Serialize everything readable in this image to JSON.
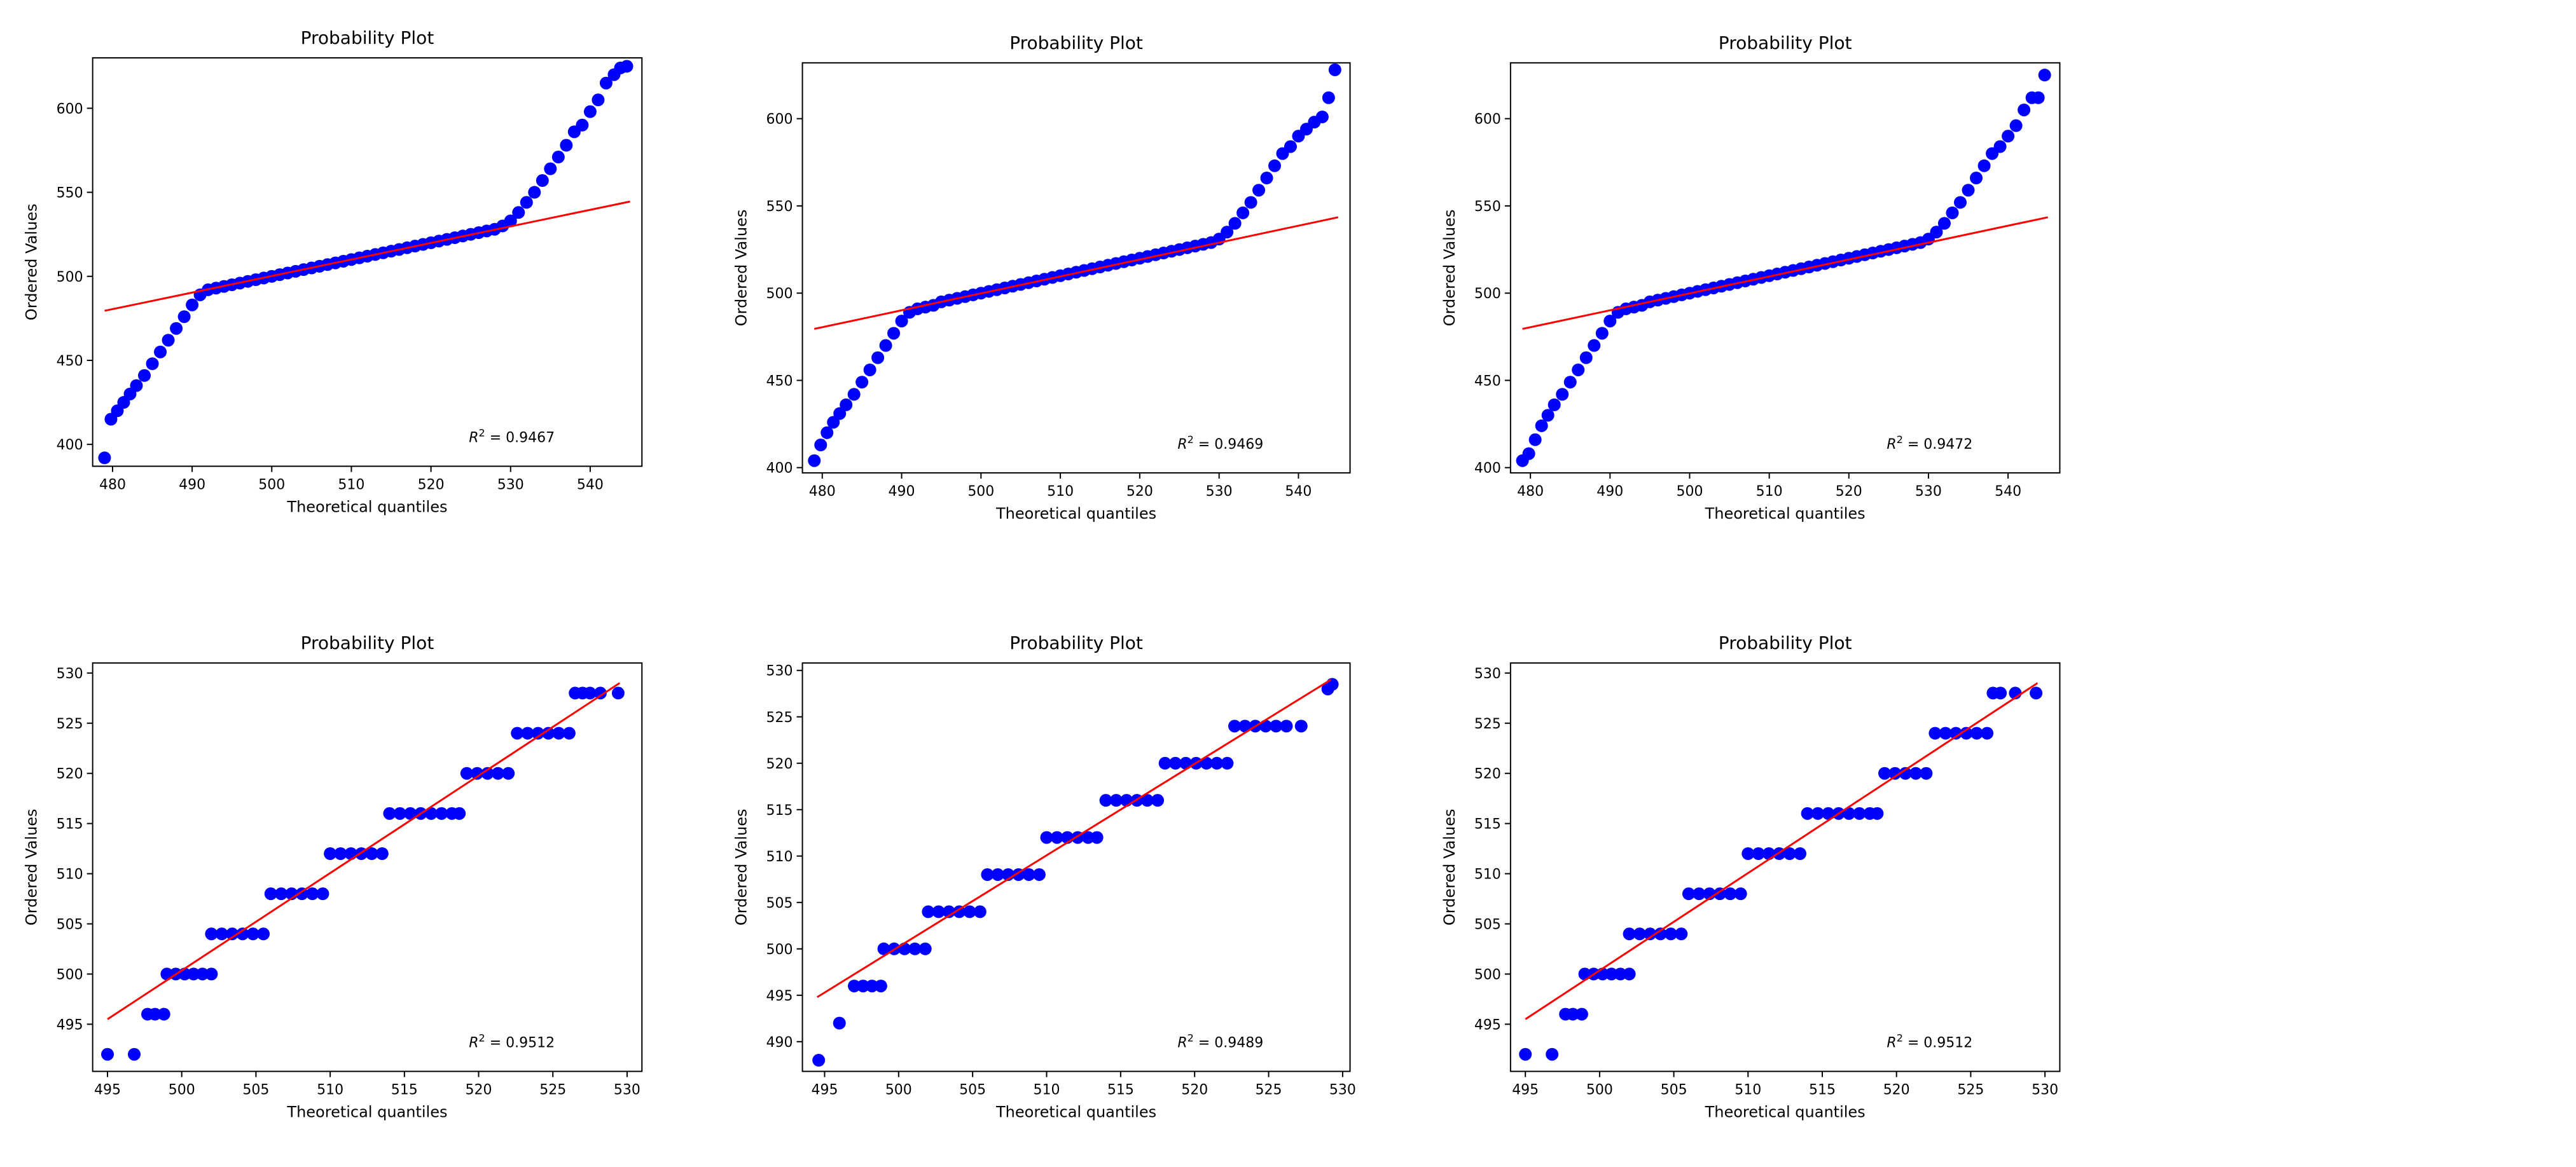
{
  "chart_data": [
    {
      "type": "scatter",
      "title": "Probability Plot",
      "xlabel": "Theoretical quantiles",
      "ylabel": "Ordered Values",
      "xlim": [
        477.5,
        546.5
      ],
      "ylim": [
        387,
        630
      ],
      "xticks": [
        480,
        490,
        500,
        510,
        520,
        530,
        540
      ],
      "yticks": [
        400,
        450,
        500,
        550,
        600
      ],
      "annotation": "R^2 = 0.9467",
      "fit_line": {
        "x": [
          479,
          545
        ],
        "y": [
          479.5,
          544.5
        ]
      },
      "series": [
        {
          "color": "#0000ff",
          "x": [
            479.0,
            479.8,
            480.6,
            481.4,
            482.2,
            483.0,
            484.0,
            485.0,
            486.0,
            487.0,
            488.0,
            489.0,
            490.0,
            491.0,
            492.0,
            493.0,
            494.0,
            495.0,
            496.0,
            497.0,
            498.0,
            499.0,
            500.0,
            501.0,
            502.0,
            503.0,
            504.0,
            505.0,
            506.0,
            507.0,
            508.0,
            509.0,
            510.0,
            511.0,
            512.0,
            513.0,
            514.0,
            515.0,
            516.0,
            517.0,
            518.0,
            519.0,
            520.0,
            521.0,
            522.0,
            523.0,
            524.0,
            525.0,
            526.0,
            527.0,
            528.0,
            529.0,
            530.0,
            531.0,
            532.0,
            533.0,
            534.0,
            535.0,
            536.0,
            537.0,
            538.0,
            539.0,
            540.0,
            541.0,
            542.0,
            543.0,
            543.8,
            544.6
          ],
          "y": [
            392.0,
            415.0,
            420.0,
            425.0,
            430.0,
            435.0,
            441.0,
            448.0,
            455.0,
            462.0,
            469.0,
            476.0,
            483.0,
            489.0,
            492.0,
            493.0,
            494.0,
            495.0,
            496.0,
            497.0,
            498.0,
            499.0,
            500.0,
            501.0,
            502.0,
            503.0,
            504.0,
            505.0,
            506.0,
            507.0,
            508.0,
            509.0,
            510.0,
            511.0,
            512.0,
            513.0,
            514.0,
            515.0,
            516.0,
            517.0,
            518.0,
            519.0,
            520.0,
            521.0,
            522.0,
            523.0,
            524.0,
            525.0,
            526.0,
            527.0,
            528.0,
            530.0,
            533.0,
            538.0,
            544.0,
            550.0,
            557.0,
            564.0,
            571.0,
            578.0,
            586.0,
            590.0,
            598.0,
            605.0,
            615.0,
            620.0,
            624.0,
            625.0
          ]
        }
      ]
    },
    {
      "type": "scatter",
      "title": "Probability Plot",
      "xlabel": "Theoretical quantiles",
      "ylabel": "Ordered Values",
      "xlim": [
        477.5,
        546.5
      ],
      "ylim": [
        397,
        632
      ],
      "xticks": [
        480,
        490,
        500,
        510,
        520,
        530,
        540
      ],
      "yticks": [
        400,
        450,
        500,
        550,
        600
      ],
      "annotation": "R^2 = 0.9469",
      "fit_line": {
        "x": [
          479,
          545
        ],
        "y": [
          479.5,
          543.5
        ]
      },
      "series": [
        {
          "color": "#0000ff",
          "x": [
            479.0,
            479.8,
            480.6,
            481.4,
            482.2,
            483.0,
            484.0,
            485.0,
            486.0,
            487.0,
            488.0,
            489.0,
            490.0,
            491.0,
            492.0,
            493.0,
            494.0,
            495.0,
            496.0,
            497.0,
            498.0,
            499.0,
            500.0,
            501.0,
            502.0,
            503.0,
            504.0,
            505.0,
            506.0,
            507.0,
            508.0,
            509.0,
            510.0,
            511.0,
            512.0,
            513.0,
            514.0,
            515.0,
            516.0,
            517.0,
            518.0,
            519.0,
            520.0,
            521.0,
            522.0,
            523.0,
            524.0,
            525.0,
            526.0,
            527.0,
            528.0,
            529.0,
            530.0,
            531.0,
            532.0,
            533.0,
            534.0,
            535.0,
            536.0,
            537.0,
            538.0,
            539.0,
            540.0,
            541.0,
            542.0,
            543.0,
            543.8,
            544.6
          ],
          "y": [
            404.0,
            413.0,
            420.0,
            426.0,
            431.0,
            436.0,
            442.0,
            449.0,
            456.0,
            463.0,
            470.0,
            477.0,
            484.0,
            489.0,
            491.0,
            492.0,
            493.0,
            495.0,
            496.0,
            497.0,
            498.0,
            499.0,
            500.0,
            501.0,
            502.0,
            503.0,
            504.0,
            505.0,
            506.0,
            507.0,
            508.0,
            509.0,
            510.0,
            511.0,
            512.0,
            513.0,
            514.0,
            515.0,
            516.0,
            517.0,
            518.0,
            519.0,
            520.0,
            521.0,
            522.0,
            523.0,
            524.0,
            525.0,
            526.0,
            527.0,
            528.0,
            529.0,
            531.0,
            535.0,
            540.0,
            546.0,
            552.0,
            559.0,
            566.0,
            573.0,
            580.0,
            584.0,
            590.0,
            594.0,
            598.0,
            601.0,
            612.0,
            628.0
          ]
        }
      ]
    },
    {
      "type": "scatter",
      "title": "Probability Plot",
      "xlabel": "Theoretical quantiles",
      "ylabel": "Ordered Values",
      "xlim": [
        477.5,
        546.5
      ],
      "ylim": [
        397,
        632
      ],
      "xticks": [
        480,
        490,
        500,
        510,
        520,
        530,
        540
      ],
      "yticks": [
        400,
        450,
        500,
        550,
        600
      ],
      "annotation": "R^2 = 0.9472",
      "fit_line": {
        "x": [
          479,
          545
        ],
        "y": [
          479.5,
          543.5
        ]
      },
      "series": [
        {
          "color": "#0000ff",
          "x": [
            479.0,
            479.8,
            480.6,
            481.4,
            482.2,
            483.0,
            484.0,
            485.0,
            486.0,
            487.0,
            488.0,
            489.0,
            490.0,
            491.0,
            492.0,
            493.0,
            494.0,
            495.0,
            496.0,
            497.0,
            498.0,
            499.0,
            500.0,
            501.0,
            502.0,
            503.0,
            504.0,
            505.0,
            506.0,
            507.0,
            508.0,
            509.0,
            510.0,
            511.0,
            512.0,
            513.0,
            514.0,
            515.0,
            516.0,
            517.0,
            518.0,
            519.0,
            520.0,
            521.0,
            522.0,
            523.0,
            524.0,
            525.0,
            526.0,
            527.0,
            528.0,
            529.0,
            530.0,
            531.0,
            532.0,
            533.0,
            534.0,
            535.0,
            536.0,
            537.0,
            538.0,
            539.0,
            540.0,
            541.0,
            542.0,
            543.0,
            543.8,
            544.6
          ],
          "y": [
            404.0,
            408.0,
            416.0,
            424.0,
            430.0,
            436.0,
            442.0,
            449.0,
            456.0,
            463.0,
            470.0,
            477.0,
            484.0,
            489.0,
            491.0,
            492.0,
            493.0,
            495.0,
            496.0,
            497.0,
            498.0,
            499.0,
            500.0,
            501.0,
            502.0,
            503.0,
            504.0,
            505.0,
            506.0,
            507.0,
            508.0,
            509.0,
            510.0,
            511.0,
            512.0,
            513.0,
            514.0,
            515.0,
            516.0,
            517.0,
            518.0,
            519.0,
            520.0,
            521.0,
            522.0,
            523.0,
            524.0,
            525.0,
            526.0,
            527.0,
            528.0,
            529.0,
            531.0,
            535.0,
            540.0,
            546.0,
            552.0,
            559.0,
            566.0,
            573.0,
            580.0,
            584.0,
            590.0,
            596.0,
            605.0,
            612.0,
            612.0,
            625.0
          ]
        }
      ]
    },
    {
      "type": "scatter",
      "title": "Probability Plot",
      "xlabel": "Theoretical quantiles",
      "ylabel": "Ordered Values",
      "xlim": [
        494.0,
        531.0
      ],
      "ylim": [
        490.3,
        531.0
      ],
      "xticks": [
        495,
        500,
        505,
        510,
        515,
        520,
        525,
        530
      ],
      "yticks": [
        495,
        500,
        505,
        510,
        515,
        520,
        525,
        530
      ],
      "annotation": "R^2 = 0.9512",
      "fit_line": {
        "x": [
          495,
          529.5
        ],
        "y": [
          495.5,
          529
        ]
      },
      "series": [
        {
          "color": "#0000ff",
          "x": [
            495.0,
            496.8,
            497.7,
            498.2,
            498.8,
            499.0,
            499.6,
            500.2,
            500.8,
            501.4,
            502.0,
            502.0,
            502.7,
            503.4,
            504.1,
            504.8,
            505.5,
            506.0,
            506.7,
            507.4,
            508.1,
            508.8,
            509.5,
            510.0,
            510.7,
            511.4,
            512.1,
            512.8,
            513.5,
            514.0,
            514.7,
            515.4,
            516.1,
            516.8,
            517.5,
            518.2,
            518.7,
            519.2,
            519.9,
            520.6,
            521.3,
            522.0,
            522.6,
            523.3,
            524.0,
            524.7,
            525.4,
            526.1,
            526.5,
            527.0,
            527.5,
            528.2,
            529.4
          ],
          "y": [
            492.0,
            492.0,
            496.0,
            496.0,
            496.0,
            500.0,
            500.0,
            500.0,
            500.0,
            500.0,
            500.0,
            504.0,
            504.0,
            504.0,
            504.0,
            504.0,
            504.0,
            508.0,
            508.0,
            508.0,
            508.0,
            508.0,
            508.0,
            512.0,
            512.0,
            512.0,
            512.0,
            512.0,
            512.0,
            516.0,
            516.0,
            516.0,
            516.0,
            516.0,
            516.0,
            516.0,
            516.0,
            520.0,
            520.0,
            520.0,
            520.0,
            520.0,
            524.0,
            524.0,
            524.0,
            524.0,
            524.0,
            524.0,
            528.0,
            528.0,
            528.0,
            528.0,
            528.0
          ]
        }
      ]
    },
    {
      "type": "scatter",
      "title": "Probability Plot",
      "xlabel": "Theoretical quantiles",
      "ylabel": "Ordered Values",
      "xlim": [
        493.5,
        530.5
      ],
      "ylim": [
        486.8,
        530.8
      ],
      "xticks": [
        495,
        500,
        505,
        510,
        515,
        520,
        525,
        530
      ],
      "yticks": [
        490,
        495,
        500,
        505,
        510,
        515,
        520,
        525,
        530
      ],
      "annotation": "R^2 = 0.9489",
      "fit_line": {
        "x": [
          494.5,
          529.2
        ],
        "y": [
          494.8,
          529
        ]
      },
      "series": [
        {
          "color": "#0000ff",
          "x": [
            494.6,
            496.0,
            497.0,
            497.6,
            498.2,
            498.8,
            499.0,
            499.7,
            500.4,
            501.1,
            501.8,
            502.0,
            502.7,
            503.4,
            504.1,
            504.8,
            505.5,
            506.0,
            506.7,
            507.4,
            508.1,
            508.8,
            509.5,
            510.0,
            510.7,
            511.4,
            512.1,
            512.8,
            513.4,
            514.0,
            514.7,
            515.4,
            516.1,
            516.8,
            517.5,
            518.0,
            518.7,
            519.4,
            520.1,
            520.8,
            521.5,
            522.2,
            522.7,
            523.4,
            524.1,
            524.8,
            525.5,
            526.2,
            527.2,
            529.0,
            529.3
          ],
          "y": [
            488.0,
            492.0,
            496.0,
            496.0,
            496.0,
            496.0,
            500.0,
            500.0,
            500.0,
            500.0,
            500.0,
            504.0,
            504.0,
            504.0,
            504.0,
            504.0,
            504.0,
            508.0,
            508.0,
            508.0,
            508.0,
            508.0,
            508.0,
            512.0,
            512.0,
            512.0,
            512.0,
            512.0,
            512.0,
            516.0,
            516.0,
            516.0,
            516.0,
            516.0,
            516.0,
            520.0,
            520.0,
            520.0,
            520.0,
            520.0,
            520.0,
            520.0,
            524.0,
            524.0,
            524.0,
            524.0,
            524.0,
            524.0,
            524.0,
            528.0,
            528.5
          ]
        }
      ]
    },
    {
      "type": "scatter",
      "title": "Probability Plot",
      "xlabel": "Theoretical quantiles",
      "ylabel": "Ordered Values",
      "xlim": [
        494.0,
        531.0
      ],
      "ylim": [
        490.3,
        531.0
      ],
      "xticks": [
        495,
        500,
        505,
        510,
        515,
        520,
        525,
        530
      ],
      "yticks": [
        495,
        500,
        505,
        510,
        515,
        520,
        525,
        530
      ],
      "annotation": "R^2 = 0.9512",
      "fit_line": {
        "x": [
          495,
          529.5
        ],
        "y": [
          495.5,
          529
        ]
      },
      "series": [
        {
          "color": "#0000ff",
          "x": [
            495.0,
            496.8,
            497.7,
            498.2,
            498.8,
            499.0,
            499.6,
            500.2,
            500.8,
            501.4,
            502.0,
            502.0,
            502.7,
            503.4,
            504.1,
            504.8,
            505.5,
            506.0,
            506.7,
            507.4,
            508.1,
            508.8,
            509.5,
            510.0,
            510.7,
            511.4,
            512.1,
            512.8,
            513.5,
            514.0,
            514.7,
            515.4,
            516.1,
            516.8,
            517.5,
            518.2,
            518.7,
            519.2,
            519.9,
            520.6,
            521.3,
            522.0,
            522.6,
            523.3,
            524.0,
            524.7,
            525.4,
            526.1,
            526.5,
            527.0,
            528.0,
            529.4
          ],
          "y": [
            492.0,
            492.0,
            496.0,
            496.0,
            496.0,
            500.0,
            500.0,
            500.0,
            500.0,
            500.0,
            500.0,
            504.0,
            504.0,
            504.0,
            504.0,
            504.0,
            504.0,
            508.0,
            508.0,
            508.0,
            508.0,
            508.0,
            508.0,
            512.0,
            512.0,
            512.0,
            512.0,
            512.0,
            512.0,
            516.0,
            516.0,
            516.0,
            516.0,
            516.0,
            516.0,
            516.0,
            516.0,
            520.0,
            520.0,
            520.0,
            520.0,
            520.0,
            524.0,
            524.0,
            524.0,
            524.0,
            524.0,
            524.0,
            528.0,
            528.0,
            528.0,
            528.0
          ]
        }
      ]
    }
  ]
}
